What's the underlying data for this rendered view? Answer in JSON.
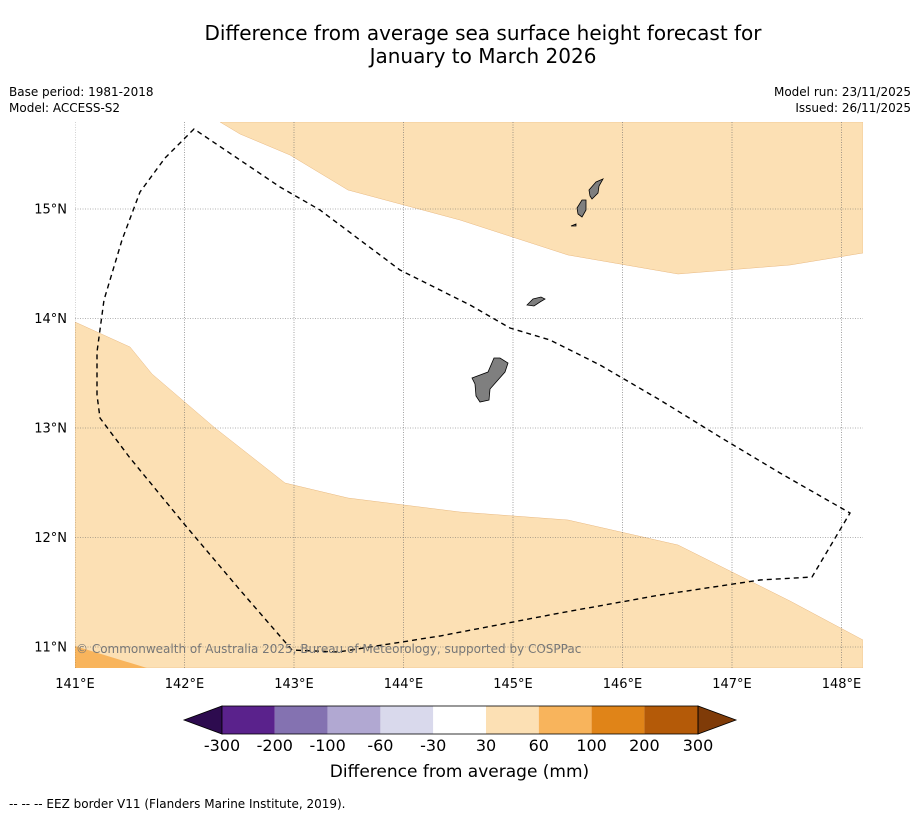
{
  "title": {
    "line1": "Difference from average sea surface height forecast for",
    "line2": "January to March 2026"
  },
  "info_left": {
    "base_period": "Base period: 1981-2018",
    "model": "Model: ACCESS-S2"
  },
  "info_right": {
    "model_run": "Model run: 23/11/2025",
    "issued": "Issued: 26/11/2025"
  },
  "map": {
    "lon_labels": [
      "141°E",
      "142°E",
      "143°E",
      "144°E",
      "145°E",
      "146°E",
      "147°E",
      "148°E"
    ],
    "lat_labels": [
      "15°N",
      "14°N",
      "13°N",
      "12°N",
      "11°N"
    ],
    "copyright": "© Commonwealth of Australia 2025, Bureau of Meteorology, supported by COSPPac",
    "colors": {
      "band_30_60": "#fce0b4",
      "band_60_100": "#f8b45c",
      "land": "#7f7f7f"
    }
  },
  "colorbar": {
    "title": "Difference from average (mm)",
    "ticks": [
      "-300",
      "-200",
      "-100",
      "-60",
      "-30",
      "30",
      "60",
      "100",
      "200",
      "300"
    ],
    "colors": [
      "#2d0b4f",
      "#5a228c",
      "#8472b1",
      "#b1a8d2",
      "#d9d9ec",
      "#ffffff",
      "#fce0b4",
      "#f8b45c",
      "#e08418",
      "#b45a08",
      "#7f3b08"
    ]
  },
  "footnote": "--  --  -- EEZ border V11 (Flanders Marine Institute, 2019)."
}
